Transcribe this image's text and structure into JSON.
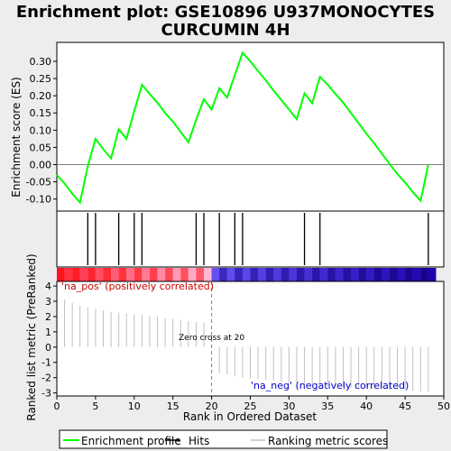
{
  "chart_data": {
    "type": "line",
    "title": "Enrichment plot: GSE10896 U937MONOCYTES\nCURCUMIN 4H",
    "xlabel": "Rank in Ordered Dataset",
    "es_panel": {
      "ylabel": "Enrichment score (ES)",
      "ylim": [
        -0.135,
        0.355
      ],
      "yticks": [
        "0.30",
        "0.25",
        "0.20",
        "0.15",
        "0.10",
        "0.05",
        "0.00",
        "-0.05",
        "-0.10"
      ],
      "series": [
        {
          "name": "Enrichment profile",
          "color": "#00ff00",
          "x": [
            0,
            1,
            2,
            3,
            4,
            5,
            6,
            7,
            8,
            9,
            10,
            11,
            12,
            13,
            14,
            15,
            16,
            17,
            18,
            19,
            20,
            21,
            22,
            23,
            24,
            25,
            26,
            27,
            28,
            29,
            30,
            31,
            32,
            33,
            34,
            35,
            36,
            37,
            38,
            39,
            40,
            41,
            42,
            43,
            44,
            45,
            46,
            47,
            48
          ],
          "y": [
            -0.03,
            -0.055,
            -0.085,
            -0.11,
            -0.005,
            0.075,
            0.045,
            0.018,
            0.103,
            0.075,
            0.155,
            0.232,
            0.205,
            0.18,
            0.15,
            0.125,
            0.095,
            0.065,
            0.13,
            0.19,
            0.16,
            0.222,
            0.195,
            0.26,
            0.325,
            0.3,
            0.272,
            0.245,
            0.215,
            0.188,
            0.16,
            0.132,
            0.207,
            0.178,
            0.255,
            0.232,
            0.205,
            0.18,
            0.15,
            0.12,
            0.09,
            0.062,
            0.032,
            0.002,
            -0.027,
            -0.052,
            -0.08,
            -0.105,
            0.0
          ]
        }
      ]
    },
    "hits": {
      "name": "Hits",
      "x": [
        4,
        5,
        8,
        10,
        11,
        18,
        19,
        21,
        23,
        24,
        32,
        34,
        48
      ]
    },
    "rank_panel": {
      "ylabel": "Ranked list metric (PreRanked)",
      "ylim": [
        -3.2,
        4.3
      ],
      "yticks": [
        "4",
        "3",
        "2",
        "1",
        "0",
        "-1",
        "-2",
        "-3"
      ],
      "series_name": "Ranking metric scores",
      "x": [
        1,
        2,
        3,
        4,
        5,
        6,
        7,
        8,
        9,
        10,
        11,
        12,
        13,
        14,
        15,
        16,
        17,
        18,
        19,
        21,
        22,
        23,
        24,
        25,
        26,
        27,
        28,
        29,
        30,
        31,
        32,
        33,
        34,
        35,
        36,
        37,
        38,
        39,
        40,
        41,
        42,
        43,
        44,
        45,
        46,
        47,
        48
      ],
      "values": [
        3.1,
        2.9,
        2.7,
        2.6,
        2.5,
        2.4,
        2.3,
        2.25,
        2.2,
        2.15,
        2.1,
        2.05,
        2.0,
        1.9,
        1.85,
        1.8,
        1.7,
        1.65,
        1.6,
        -1.7,
        -1.8,
        -1.9,
        -2.0,
        -2.05,
        -2.1,
        -2.15,
        -2.2,
        -2.25,
        -2.3,
        -2.35,
        -2.4,
        -2.45,
        -2.5,
        -2.55,
        -2.6,
        -2.6,
        -2.65,
        -2.7,
        -2.7,
        -2.75,
        -2.75,
        -2.8,
        -2.8,
        -2.85,
        -2.85,
        -2.9,
        -2.95
      ]
    },
    "annotations": {
      "pos_label": "'na_pos' (positively correlated)",
      "neg_label": "'na_neg' (negatively correlated)",
      "zero_cross": "Zero cross at 20",
      "zero_cross_x": 20
    },
    "xlim": [
      0,
      50
    ],
    "xticks": [
      "0",
      "5",
      "10",
      "15",
      "20",
      "25",
      "30",
      "35",
      "40",
      "45",
      "50"
    ],
    "legend": {
      "placement": "bottom",
      "items": [
        {
          "label": "Enrichment profile",
          "color": "#00ff00"
        },
        {
          "label": "Hits",
          "color": "#000000"
        },
        {
          "label": "Ranking metric scores",
          "color": "#c0c0c0"
        }
      ]
    },
    "colors": {
      "pos_text": "#cc0000",
      "neg_text": "#0000cc",
      "gradient_pos": "#ff0000",
      "gradient_neg": "#2b00cc"
    }
  }
}
